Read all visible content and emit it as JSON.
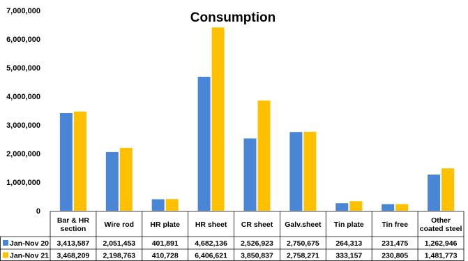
{
  "chart_data": {
    "type": "bar",
    "title": "Consumption",
    "categories": [
      [
        "Bar & HR",
        "section"
      ],
      [
        "Wire rod"
      ],
      [
        "HR plate"
      ],
      [
        "HR sheet"
      ],
      [
        "CR sheet"
      ],
      [
        "Galv.sheet"
      ],
      [
        "Tin plate"
      ],
      [
        "Tin free"
      ],
      [
        "Other",
        "coated steel"
      ]
    ],
    "series": [
      {
        "name": "Jan-Nov 20",
        "color": "#4A86D6",
        "values": [
          3413587,
          2051453,
          401891,
          4682136,
          2526923,
          2750675,
          264313,
          231475,
          1262946
        ],
        "labels": [
          "3,413,587",
          "2,051,453",
          "401,891",
          "4,682,136",
          "2,526,923",
          "2,750,675",
          "264,313",
          "231,475",
          "1,262,946"
        ]
      },
      {
        "name": "Jan-Nov 21",
        "color": "#FFC000",
        "values": [
          3468209,
          2198763,
          410728,
          6406621,
          3850837,
          2758271,
          333157,
          230805,
          1481773
        ],
        "labels": [
          "3,468,209",
          "2,198,763",
          "410,728",
          "6,406,621",
          "3,850,837",
          "2,758,271",
          "333,157",
          "230,805",
          "1,481,773"
        ]
      }
    ],
    "ylim": [
      0,
      7000000
    ],
    "yticks": [
      0,
      1000000,
      2000000,
      3000000,
      4000000,
      5000000,
      6000000,
      7000000
    ],
    "ytick_labels": [
      "0",
      "1,000,000",
      "2,000,000",
      "3,000,000",
      "4,000,000",
      "5,000,000",
      "6,000,000",
      "7,000,000"
    ],
    "legend": "data-table-below",
    "grid": false
  }
}
